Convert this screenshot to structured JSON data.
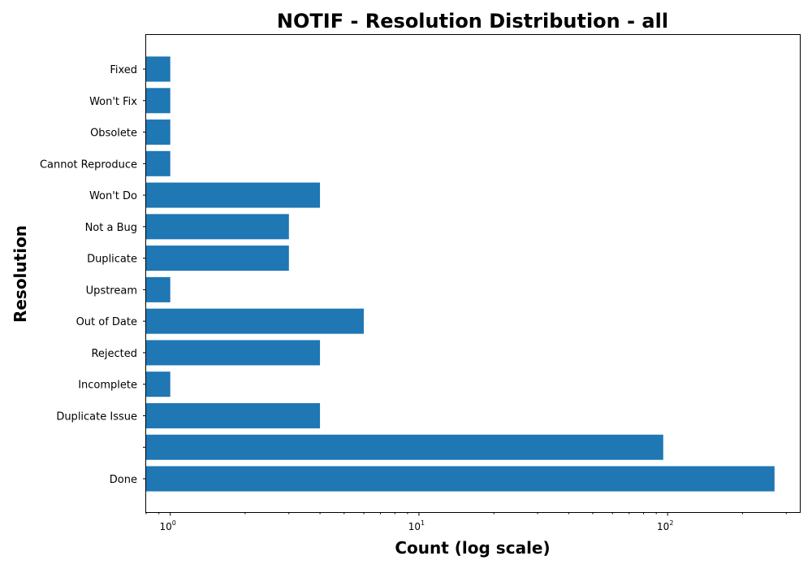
{
  "chart_data": {
    "type": "bar",
    "orientation": "horizontal",
    "title": "NOTIF - Resolution Distribution - all",
    "xlabel": "Count (log scale)",
    "ylabel": "Resolution",
    "x_scale": "log",
    "xlim": [
      0.8,
      340
    ],
    "x_major_ticks": [
      {
        "value": 1,
        "base": "10",
        "exp": "0"
      },
      {
        "value": 10,
        "base": "10",
        "exp": "1"
      },
      {
        "value": 100,
        "base": "10",
        "exp": "2"
      }
    ],
    "bar_color": "#1f77b4",
    "grid": false,
    "categories": [
      "Done",
      "",
      "Duplicate Issue",
      "Incomplete",
      "Rejected",
      "Out of Date",
      "Upstream",
      "Duplicate",
      "Not a Bug",
      "Won't Do",
      "Cannot Reproduce",
      "Obsolete",
      "Won't Fix",
      "Fixed"
    ],
    "values": [
      269,
      96,
      4,
      1,
      4,
      6,
      1,
      3,
      3,
      4,
      1,
      1,
      1,
      1
    ]
  }
}
